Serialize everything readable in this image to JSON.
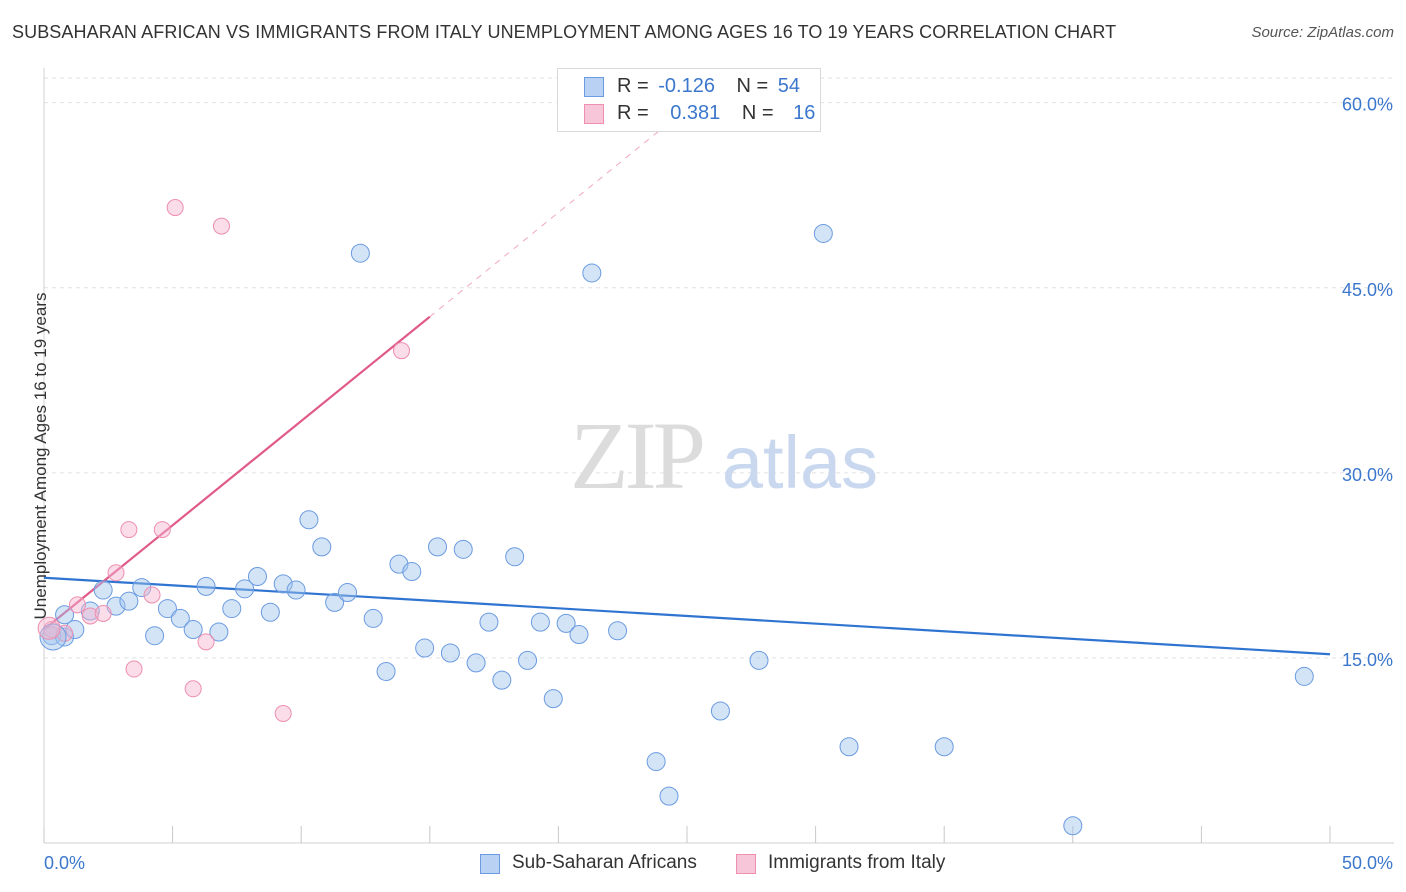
{
  "header": {
    "title": "SUBSAHARAN AFRICAN VS IMMIGRANTS FROM ITALY UNEMPLOYMENT AMONG AGES 16 TO 19 YEARS CORRELATION CHART",
    "source": "Source: ZipAtlas.com"
  },
  "watermark": {
    "zip": "ZIP",
    "atlas": "atlas"
  },
  "legend": {
    "r_label": "R =",
    "n_label": "N =",
    "series1": {
      "r": "-0.126",
      "n": "54"
    },
    "series2": {
      "r": "0.381",
      "n": "16"
    }
  },
  "chart_data": {
    "type": "scatter",
    "title": "SUBSAHARAN AFRICAN VS IMMIGRANTS FROM ITALY UNEMPLOYMENT AMONG AGES 16 TO 19 YEARS CORRELATION CHART",
    "xlabel": "",
    "ylabel": "Unemployment Among Ages 16 to 19 years",
    "xlim": [
      0,
      50
    ],
    "ylim": [
      0,
      62
    ],
    "x_tick_labels": [
      "0.0%",
      "50.0%"
    ],
    "y_ticks": [
      15,
      30,
      45,
      60
    ],
    "y_tick_labels": [
      "15.0%",
      "30.0%",
      "45.0%",
      "60.0%"
    ],
    "colors": {
      "blue": "#6b9be0",
      "pink": "#ee8fb0",
      "blue_line": "#2f74d0",
      "pink_line": "#e05a8a"
    },
    "series": [
      {
        "name": "Sub-Saharan Africans",
        "r": -0.126,
        "n": 54,
        "trend": {
          "x": [
            0,
            50
          ],
          "y": [
            21.5,
            15.3
          ],
          "dashed_from": null
        },
        "points": [
          [
            0.3,
            16.8
          ],
          [
            0.8,
            16.7
          ],
          [
            1.2,
            17.3
          ],
          [
            1.8,
            18.8
          ],
          [
            2.3,
            20.5
          ],
          [
            2.8,
            19.2
          ],
          [
            3.3,
            19.6
          ],
          [
            3.8,
            20.7
          ],
          [
            4.3,
            16.8
          ],
          [
            4.8,
            19.0
          ],
          [
            5.3,
            18.2
          ],
          [
            5.8,
            17.3
          ],
          [
            6.3,
            20.8
          ],
          [
            6.8,
            17.1
          ],
          [
            7.3,
            19.0
          ],
          [
            7.8,
            20.6
          ],
          [
            8.3,
            21.6
          ],
          [
            8.8,
            18.7
          ],
          [
            9.3,
            21.0
          ],
          [
            9.8,
            20.5
          ],
          [
            10.3,
            26.2
          ],
          [
            10.8,
            24.0
          ],
          [
            11.3,
            19.5
          ],
          [
            11.8,
            20.3
          ],
          [
            12.3,
            47.8
          ],
          [
            12.8,
            18.2
          ],
          [
            13.3,
            13.9
          ],
          [
            13.8,
            22.6
          ],
          [
            14.3,
            22.0
          ],
          [
            14.8,
            15.8
          ],
          [
            15.3,
            24.0
          ],
          [
            15.8,
            15.4
          ],
          [
            16.3,
            23.8
          ],
          [
            16.8,
            14.6
          ],
          [
            17.3,
            17.9
          ],
          [
            17.8,
            13.2
          ],
          [
            18.3,
            23.2
          ],
          [
            18.8,
            14.8
          ],
          [
            19.3,
            17.9
          ],
          [
            19.8,
            11.7
          ],
          [
            20.3,
            17.8
          ],
          [
            20.8,
            16.9
          ],
          [
            21.3,
            46.2
          ],
          [
            22.3,
            17.2
          ],
          [
            23.8,
            6.6
          ],
          [
            24.3,
            3.8
          ],
          [
            26.3,
            10.7
          ],
          [
            27.8,
            14.8
          ],
          [
            30.3,
            49.4
          ],
          [
            31.3,
            7.8
          ],
          [
            35.0,
            7.8
          ],
          [
            40.0,
            1.4
          ],
          [
            49.0,
            13.5
          ],
          [
            0.8,
            18.5
          ]
        ]
      },
      {
        "name": "Immigrants from Italy",
        "r": 0.381,
        "n": 16,
        "trend": {
          "x": [
            0,
            30
          ],
          "y": [
            17.3,
            68.0
          ],
          "solid_until_x": 15
        },
        "points": [
          [
            0.3,
            17.3
          ],
          [
            0.8,
            17.0
          ],
          [
            1.3,
            19.3
          ],
          [
            1.8,
            18.4
          ],
          [
            2.3,
            18.6
          ],
          [
            2.8,
            21.9
          ],
          [
            3.3,
            25.4
          ],
          [
            3.5,
            14.1
          ],
          [
            4.2,
            20.1
          ],
          [
            4.6,
            25.4
          ],
          [
            5.1,
            51.5
          ],
          [
            5.8,
            12.5
          ],
          [
            6.3,
            16.3
          ],
          [
            6.9,
            50.0
          ],
          [
            9.3,
            10.5
          ],
          [
            13.9,
            39.9
          ]
        ]
      }
    ]
  }
}
